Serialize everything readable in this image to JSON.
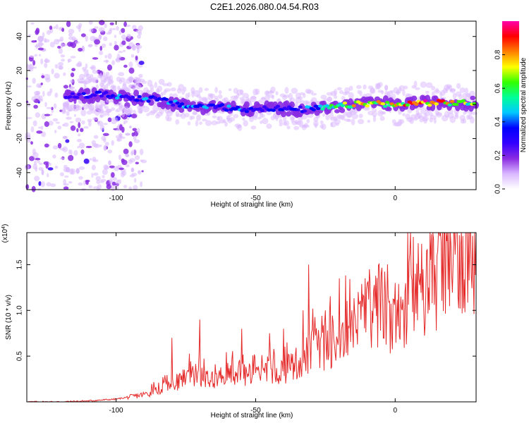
{
  "title": "C2E1.2026.080.04.54.R03",
  "chart_data": [
    {
      "type": "heatmap",
      "xlabel": "Height of straight line (km)",
      "ylabel": "Frequency (Hz)",
      "xlim": [
        -132,
        29
      ],
      "ylim": [
        -50,
        49
      ],
      "xticks": [
        -100,
        -50,
        0
      ],
      "yticks": [
        -40,
        -20,
        0,
        20,
        40
      ],
      "grid": false,
      "colorbar": {
        "label": "Normalized spectral amplitude",
        "range": [
          0,
          1
        ],
        "ticks": [
          0.0,
          0.2,
          0.4,
          0.6,
          0.8
        ],
        "tick_labels": [
          "0.0",
          "0.2",
          "0.4",
          "0.6",
          "0.8"
        ],
        "colors": [
          "#ffffff",
          "#d9b8ff",
          "#8a2be2",
          "#3300ff",
          "#0000ff",
          "#00c8ff",
          "#00ff99",
          "#33ff00",
          "#ffff00",
          "#ff8000",
          "#ff0000",
          "#ff00aa"
        ]
      },
      "ridge_center": [
        [
          -115,
          5
        ],
        [
          -105,
          6
        ],
        [
          -95,
          4
        ],
        [
          -85,
          3
        ],
        [
          -75,
          -1
        ],
        [
          -65,
          -1
        ],
        [
          -55,
          -3
        ],
        [
          -45,
          -2
        ],
        [
          -35,
          -3
        ],
        [
          -25,
          -2
        ],
        [
          -15,
          0
        ],
        [
          -5,
          1
        ],
        [
          0,
          -1
        ],
        [
          5,
          1
        ],
        [
          15,
          1
        ],
        [
          29,
          1
        ]
      ],
      "peak_amplitude_by_height": [
        [
          -115,
          0.35
        ],
        [
          -100,
          0.45
        ],
        [
          -90,
          0.45
        ],
        [
          -75,
          0.45
        ],
        [
          -60,
          0.45
        ],
        [
          -45,
          0.4
        ],
        [
          -35,
          0.35
        ],
        [
          -25,
          0.6
        ],
        [
          -15,
          0.85
        ],
        [
          -5,
          0.85
        ],
        [
          0,
          0.85
        ],
        [
          10,
          1.0
        ],
        [
          20,
          0.85
        ],
        [
          29,
          0.75
        ]
      ]
    },
    {
      "type": "line",
      "xlabel": "Height of straight line (km)",
      "ylabel": "SNR (10 * v/v)",
      "y_multiplier_label": "(x10",
      "y_multiplier_exp": "4",
      "xlim": [
        -132,
        29
      ],
      "ylim": [
        0,
        1.85
      ],
      "xticks": [
        -100,
        -50,
        0
      ],
      "yticks": [
        0.5,
        1.0,
        1.5
      ],
      "ytick_labels": [
        "0.5",
        "1.0",
        "1.5"
      ],
      "grid": false,
      "series": [
        {
          "name": "SNR",
          "color": "#e52a2a",
          "x": [
            -132,
            -120,
            -110,
            -100,
            -90,
            -80,
            -75,
            -70,
            -65,
            -60,
            -55,
            -50,
            -45,
            -40,
            -35,
            -30,
            -25,
            -20,
            -15,
            -10,
            -5,
            -2,
            0,
            5,
            10,
            15,
            20,
            25,
            29
          ],
          "y": [
            0.0,
            0.0,
            0.01,
            0.03,
            0.08,
            0.18,
            0.27,
            0.3,
            0.27,
            0.3,
            0.3,
            0.27,
            0.3,
            0.35,
            0.42,
            0.55,
            0.62,
            0.7,
            0.8,
            1.0,
            1.1,
            0.85,
            0.75,
            1.2,
            1.25,
            1.4,
            1.55,
            1.62,
            1.72
          ],
          "spikes": [
            [
              -80,
              0.7
            ],
            [
              -70,
              0.9
            ],
            [
              -55,
              0.8
            ],
            [
              -45,
              0.75
            ],
            [
              -40,
              0.8
            ],
            [
              -33,
              1.0
            ],
            [
              -31,
              1.5
            ],
            [
              -25,
              1.0
            ],
            [
              -20,
              1.35
            ],
            [
              -10,
              1.3
            ],
            [
              -5,
              1.4
            ],
            [
              0,
              1.3
            ],
            [
              5,
              1.52
            ],
            [
              10,
              1.45
            ],
            [
              15,
              1.6
            ],
            [
              20,
              1.72
            ],
            [
              22,
              1.85
            ],
            [
              29,
              1.8
            ]
          ]
        }
      ]
    }
  ]
}
